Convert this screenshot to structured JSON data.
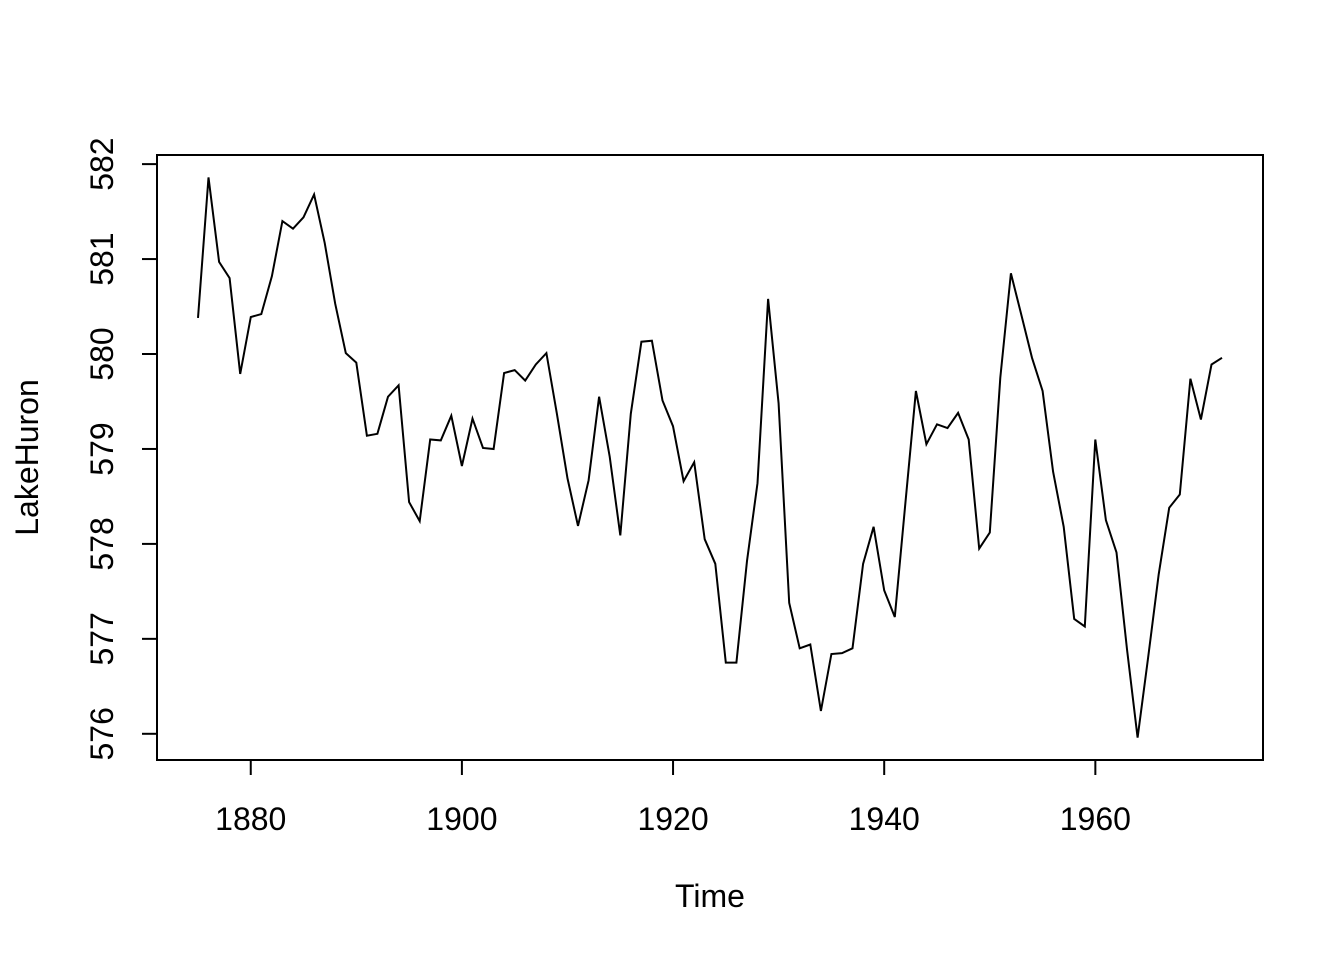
{
  "figure": {
    "background": "#ffffff",
    "foreground": "#000000"
  },
  "chart_data": {
    "type": "line",
    "title": "",
    "xlabel": "Time",
    "ylabel": "LakeHuron",
    "x_start": 1875,
    "x_end": 1972,
    "x_step": 1,
    "values": [
      580.38,
      581.86,
      580.97,
      580.8,
      579.79,
      580.39,
      580.42,
      580.82,
      581.4,
      581.32,
      581.44,
      581.68,
      581.17,
      580.53,
      580.01,
      579.91,
      579.14,
      579.16,
      579.55,
      579.67,
      578.44,
      578.24,
      579.1,
      579.09,
      579.35,
      578.82,
      579.32,
      579.01,
      579.0,
      579.8,
      579.83,
      579.72,
      579.89,
      580.01,
      579.37,
      578.69,
      578.19,
      578.67,
      579.55,
      578.92,
      578.09,
      579.37,
      580.13,
      580.14,
      579.51,
      579.24,
      578.66,
      578.86,
      578.05,
      577.79,
      576.75,
      576.75,
      577.82,
      578.64,
      580.58,
      579.48,
      577.38,
      576.9,
      576.94,
      576.24,
      576.84,
      576.85,
      576.9,
      577.79,
      578.18,
      577.51,
      577.23,
      578.42,
      579.61,
      579.05,
      579.26,
      579.22,
      579.38,
      579.1,
      577.95,
      578.12,
      579.75,
      580.85,
      580.41,
      579.96,
      579.61,
      578.76,
      578.18,
      577.21,
      577.13,
      579.1,
      578.25,
      577.91,
      576.89,
      575.96,
      576.8,
      577.68,
      578.38,
      578.52,
      579.74,
      579.31,
      579.89,
      579.96
    ],
    "xticks": [
      1880,
      1900,
      1920,
      1940,
      1960
    ],
    "yticks": [
      576,
      577,
      578,
      579,
      580,
      581,
      582
    ],
    "xlim": [
      1871.12,
      1975.88
    ],
    "ylim": [
      575.724,
      582.096
    ],
    "line_color": "#000000",
    "grid": false,
    "legend": null
  }
}
